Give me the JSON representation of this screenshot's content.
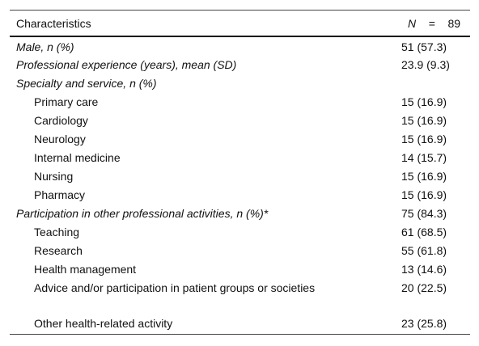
{
  "header": {
    "title": "Characteristics",
    "n_label": "N",
    "n_equals": "=",
    "n_value": "89"
  },
  "sections": [
    {
      "label": "Male, n (%)",
      "value": "51 (57.3)",
      "items": []
    },
    {
      "label": "Professional experience (years), mean (SD)",
      "value": "23.9 (9.3)",
      "items": []
    },
    {
      "label": "Specialty and service, n (%)",
      "value": null,
      "items": [
        {
          "label": "Primary care",
          "value": "15 (16.9)"
        },
        {
          "label": "Cardiology",
          "value": "15 (16.9)"
        },
        {
          "label": "Neurology",
          "value": "15 (16.9)"
        },
        {
          "label": "Internal medicine",
          "value": "14 (15.7)"
        },
        {
          "label": "Nursing",
          "value": "15 (16.9)"
        },
        {
          "label": "Pharmacy",
          "value": "15 (16.9)"
        }
      ]
    },
    {
      "label": "Participation in other professional activities, n (%)*",
      "value": "75 (84.3)",
      "items": [
        {
          "label": "Teaching",
          "value": "61 (68.5)"
        },
        {
          "label": "Research",
          "value": "55 (61.8)"
        },
        {
          "label": "Health management",
          "value": "13 (14.6)"
        },
        {
          "label": "Advice and/or participation in patient groups or societies",
          "value": "20 (22.5)"
        },
        {
          "label": "Other health-related activity",
          "value": "23 (25.8)"
        }
      ]
    }
  ]
}
